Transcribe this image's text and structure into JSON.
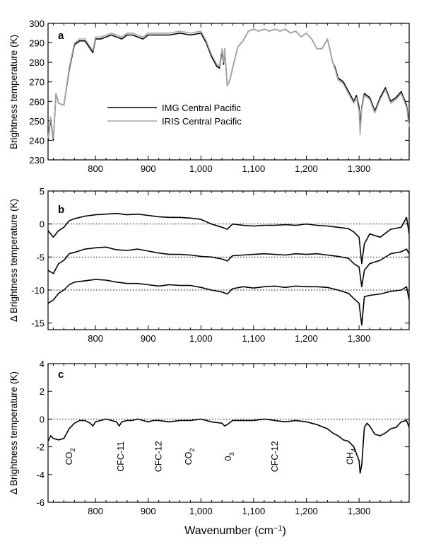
{
  "figure": {
    "xlabel_main": "Wavenumber (cm",
    "xlabel_sup": "−1",
    "xlabel_close": ")",
    "x_ticks": [
      "800",
      "900",
      "1,000",
      "1,100",
      "1,200",
      "1,300"
    ],
    "x_tick_values": [
      800,
      900,
      1000,
      1100,
      1200,
      1300
    ]
  },
  "chart_data": [
    {
      "panel": "a",
      "type": "line",
      "ylabel": "Brightness temperature (K)",
      "xlim": [
        710,
        1395
      ],
      "ylim": [
        230,
        300
      ],
      "y_ticks": [
        "230",
        "240",
        "250",
        "260",
        "270",
        "280",
        "290",
        "300"
      ],
      "y_tick_values": [
        230,
        240,
        250,
        260,
        270,
        280,
        290,
        300
      ],
      "legend_position": "center-left",
      "series": [
        {
          "name": "IMG Central Pacific",
          "color": "#000000",
          "x": [
            710,
            715,
            720,
            725,
            730,
            740,
            750,
            760,
            770,
            780,
            790,
            795,
            800,
            810,
            820,
            830,
            840,
            850,
            860,
            870,
            880,
            890,
            900,
            920,
            940,
            960,
            980,
            1000,
            1010,
            1020,
            1030,
            1035,
            1040,
            1043,
            1045,
            1050,
            1055,
            1060,
            1070,
            1080,
            1090,
            1100,
            1110,
            1120,
            1130,
            1140,
            1150,
            1160,
            1170,
            1180,
            1190,
            1200,
            1210,
            1220,
            1230,
            1240,
            1245,
            1250,
            1255,
            1260,
            1270,
            1280,
            1290,
            1295,
            1300,
            1302,
            1305,
            1310,
            1320,
            1330,
            1340,
            1350,
            1360,
            1370,
            1380,
            1390,
            1395
          ],
          "y": [
            240,
            251,
            240,
            264,
            259,
            258,
            276,
            289,
            291,
            291,
            287,
            285,
            292,
            292,
            293,
            294,
            293,
            292,
            294,
            294,
            293,
            292,
            294,
            294,
            294,
            295,
            294,
            295,
            290,
            283,
            278,
            277,
            286,
            279,
            287,
            268,
            271,
            277,
            288,
            291,
            296,
            297,
            296,
            297,
            296,
            297,
            296,
            297,
            295,
            296,
            293,
            295,
            292,
            287,
            287,
            292,
            286,
            280,
            277,
            272,
            270,
            265,
            260,
            263,
            257,
            247,
            257,
            264,
            262,
            255,
            262,
            267,
            260,
            262,
            265,
            258,
            249
          ]
        },
        {
          "name": "IRIS Central Pacific",
          "color": "#a8a8a8",
          "x": [
            710,
            715,
            720,
            725,
            730,
            740,
            750,
            760,
            770,
            780,
            790,
            795,
            800,
            810,
            820,
            830,
            840,
            850,
            860,
            870,
            880,
            890,
            900,
            920,
            940,
            960,
            980,
            1000,
            1010,
            1020,
            1030,
            1035,
            1040,
            1043,
            1045,
            1050,
            1055,
            1060,
            1070,
            1080,
            1090,
            1100,
            1110,
            1120,
            1130,
            1140,
            1150,
            1160,
            1170,
            1180,
            1190,
            1200,
            1210,
            1220,
            1230,
            1240,
            1245,
            1250,
            1255,
            1260,
            1270,
            1280,
            1290,
            1295,
            1300,
            1302,
            1305,
            1310,
            1320,
            1330,
            1340,
            1350,
            1360,
            1370,
            1380,
            1390,
            1395
          ],
          "y": [
            241,
            252,
            241,
            264,
            259,
            258,
            277,
            290,
            292,
            292,
            288,
            286,
            293,
            293,
            294,
            295,
            294,
            293,
            295,
            295,
            294,
            293,
            295,
            295,
            295,
            296,
            295,
            296,
            291,
            284,
            279,
            278,
            287,
            280,
            287,
            268,
            271,
            277,
            288,
            291,
            296,
            297,
            296,
            297,
            296,
            297,
            296,
            297,
            295,
            296,
            293,
            295,
            292,
            287,
            287,
            292,
            286,
            280,
            276,
            271,
            269,
            264,
            259,
            262,
            255,
            243,
            256,
            263,
            261,
            254,
            261,
            266,
            259,
            261,
            264,
            257,
            247
          ]
        }
      ]
    },
    {
      "panel": "b",
      "type": "line",
      "ylabel": "Δ Brightness temperature (K)",
      "xlim": [
        710,
        1395
      ],
      "ylim": [
        -16,
        5
      ],
      "y_ticks": [
        "5",
        "0",
        "-5",
        "-10",
        "-15"
      ],
      "y_tick_values": [
        5,
        0,
        -5,
        -10,
        -15
      ],
      "reference_lines": [
        0,
        -5,
        -10
      ],
      "series": [
        {
          "name": "",
          "color": "#000000",
          "x": [
            710,
            720,
            730,
            740,
            750,
            760,
            780,
            800,
            820,
            840,
            860,
            880,
            900,
            920,
            940,
            960,
            980,
            1000,
            1020,
            1040,
            1050,
            1060,
            1080,
            1100,
            1120,
            1140,
            1160,
            1180,
            1200,
            1220,
            1240,
            1260,
            1280,
            1290,
            1300,
            1305,
            1310,
            1320,
            1340,
            1360,
            1380,
            1390,
            1395
          ],
          "y": [
            -1,
            -2,
            -1,
            -0.5,
            0.5,
            0.8,
            1.2,
            1.4,
            1.5,
            1.6,
            1.4,
            1.5,
            1.3,
            1.1,
            1.0,
            1.0,
            0.9,
            0.7,
            0,
            -0.5,
            -0.8,
            0,
            -0.2,
            -0.3,
            -0.2,
            -0.2,
            -0.1,
            -0.2,
            0,
            -0.2,
            -0.3,
            -0.5,
            -0.7,
            -1.2,
            -2,
            -6,
            -3,
            -1.5,
            -2,
            -0.8,
            -0.5,
            1,
            -1.5
          ]
        },
        {
          "name": "",
          "color": "#000000",
          "x": [
            710,
            720,
            730,
            740,
            750,
            760,
            780,
            800,
            820,
            840,
            860,
            880,
            900,
            920,
            940,
            960,
            980,
            1000,
            1020,
            1040,
            1050,
            1060,
            1080,
            1100,
            1120,
            1140,
            1160,
            1180,
            1200,
            1220,
            1240,
            1260,
            1280,
            1290,
            1300,
            1305,
            1310,
            1320,
            1340,
            1360,
            1380,
            1390,
            1395
          ],
          "y": [
            -7,
            -7.5,
            -6,
            -5.5,
            -4.5,
            -4.3,
            -3.8,
            -3.6,
            -3.5,
            -3.9,
            -4.0,
            -3.8,
            -4.1,
            -4.4,
            -4.6,
            -4.6,
            -4.7,
            -4.9,
            -5.0,
            -5.3,
            -5.6,
            -4.8,
            -4.7,
            -4.6,
            -4.5,
            -4.6,
            -4.7,
            -4.5,
            -4.6,
            -4.5,
            -4.7,
            -4.9,
            -5.2,
            -6,
            -6.5,
            -9.5,
            -7,
            -6,
            -5.5,
            -4.5,
            -4.2,
            -3.8,
            -4.5
          ]
        },
        {
          "name": "",
          "color": "#000000",
          "x": [
            710,
            720,
            730,
            740,
            750,
            760,
            780,
            800,
            820,
            840,
            860,
            880,
            900,
            920,
            940,
            960,
            980,
            1000,
            1020,
            1040,
            1050,
            1060,
            1080,
            1100,
            1120,
            1140,
            1160,
            1180,
            1200,
            1220,
            1240,
            1260,
            1280,
            1290,
            1300,
            1305,
            1310,
            1320,
            1340,
            1360,
            1380,
            1390,
            1395
          ],
          "y": [
            -12,
            -11.5,
            -10.5,
            -10,
            -9.2,
            -8.8,
            -8.6,
            -8.4,
            -8.5,
            -8.8,
            -9.0,
            -9.0,
            -9.2,
            -9.4,
            -9.2,
            -9.3,
            -9.3,
            -9.6,
            -10.0,
            -10.3,
            -10.6,
            -9.8,
            -9.5,
            -9.7,
            -9.5,
            -9.4,
            -9.6,
            -9.4,
            -9.5,
            -9.5,
            -9.6,
            -10.0,
            -10.5,
            -11.3,
            -12,
            -15.3,
            -11,
            -10.8,
            -10.6,
            -10.2,
            -10.0,
            -9.5,
            -11.5
          ]
        }
      ]
    },
    {
      "panel": "c",
      "type": "line",
      "ylabel": "Δ Brightness temperature (K)",
      "xlim": [
        710,
        1395
      ],
      "ylim": [
        -6,
        4
      ],
      "y_ticks": [
        "4",
        "2",
        "0",
        "-2",
        "-4",
        "-6"
      ],
      "y_tick_values": [
        4,
        2,
        0,
        -2,
        -4,
        -6
      ],
      "reference_lines": [
        0
      ],
      "annotations": [
        {
          "label": "CO",
          "sub": "2",
          "x": 750
        },
        {
          "label": "CFC-11",
          "sub": "",
          "x": 848
        },
        {
          "label": "CFC-12",
          "sub": "",
          "x": 920
        },
        {
          "label": "CO",
          "sub": "2",
          "x": 977
        },
        {
          "label": "0",
          "sub": "3",
          "x": 1052
        },
        {
          "label": "CFC-12",
          "sub": "",
          "x": 1140
        },
        {
          "label": "CH",
          "sub": "4",
          "x": 1283
        }
      ],
      "series": [
        {
          "name": "",
          "color": "#000000",
          "x": [
            710,
            715,
            720,
            730,
            740,
            750,
            760,
            770,
            780,
            790,
            795,
            800,
            810,
            820,
            830,
            840,
            845,
            850,
            860,
            870,
            880,
            890,
            900,
            910,
            920,
            940,
            960,
            980,
            1000,
            1020,
            1040,
            1045,
            1050,
            1060,
            1080,
            1100,
            1120,
            1140,
            1160,
            1180,
            1200,
            1220,
            1240,
            1250,
            1260,
            1270,
            1280,
            1290,
            1295,
            1300,
            1302,
            1305,
            1310,
            1315,
            1320,
            1330,
            1340,
            1350,
            1360,
            1370,
            1380,
            1390,
            1395
          ],
          "y": [
            -1.6,
            -1.2,
            -1.4,
            -1.5,
            -1.4,
            -0.7,
            -0.3,
            -0.1,
            -0.1,
            -0.3,
            -0.5,
            -0.2,
            -0.1,
            0,
            -0.1,
            -0.2,
            -0.5,
            -0.2,
            -0.1,
            -0.1,
            0,
            -0.1,
            -0.2,
            -0.1,
            -0.1,
            -0.2,
            -0.1,
            -0.1,
            0,
            -0.2,
            -0.3,
            -0.5,
            -0.4,
            -0.1,
            -0.1,
            -0.1,
            0,
            -0.1,
            -0.2,
            -0.1,
            -0.2,
            -0.4,
            -0.7,
            -1.0,
            -1.2,
            -1.5,
            -1.6,
            -2.0,
            -2.5,
            -3.0,
            -3.9,
            -3.3,
            -0.6,
            -0.3,
            -0.5,
            -1.1,
            -1.2,
            -1.0,
            -0.7,
            -0.6,
            -0.2,
            -0.1,
            -0.6
          ]
        }
      ]
    }
  ]
}
